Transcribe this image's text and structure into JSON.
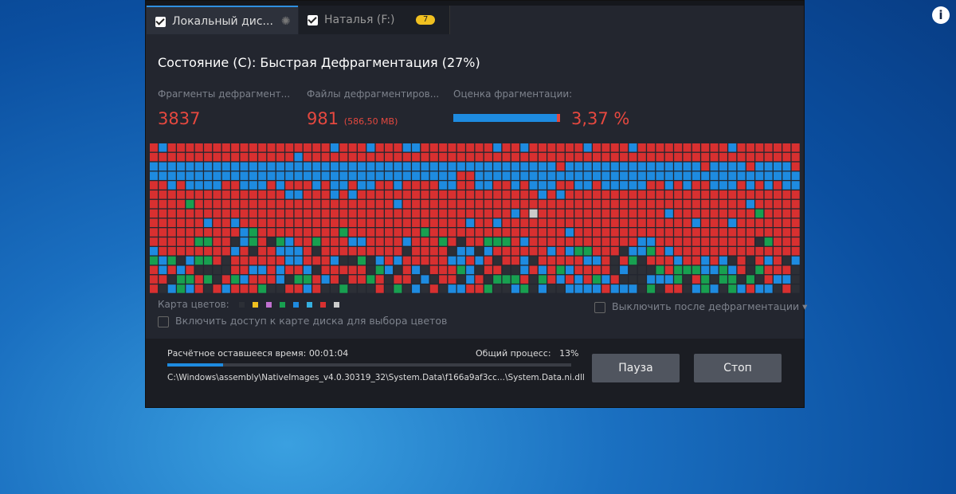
{
  "tabs": [
    {
      "label": "Локальный дис..."
    },
    {
      "label": "Наталья (F:)",
      "badge": "7"
    }
  ],
  "status": "Состояние (C): Быстрая Дефрагментация (27%)",
  "stats": [
    {
      "label": "Фрагменты дефрагмент...",
      "value": "3837"
    },
    {
      "label": "Файлы дефрагментиров...",
      "value": "981",
      "note": "(586,50 MB)"
    },
    {
      "label": "Оценка фрагментации:",
      "value": "3,37 %"
    }
  ],
  "legend_label": "Карта цветов:",
  "enable_access": "Включить доступ к карте диска для выбора цветов",
  "shutdown": "Выключить после дефрагментации",
  "remaining_label": "Расчётное оставшееся время:",
  "remaining": "00:01:04",
  "overall_label": "Общий процесс:",
  "overall": "13%",
  "current_file": "C:\\Windows\\assembly\\NativeImages_v4.0.30319_32\\System.Data\\f166a9af3cc...\\System.Data.ni.dll",
  "buttons": [
    "Пауза",
    "Стоп"
  ],
  "info": "i"
}
